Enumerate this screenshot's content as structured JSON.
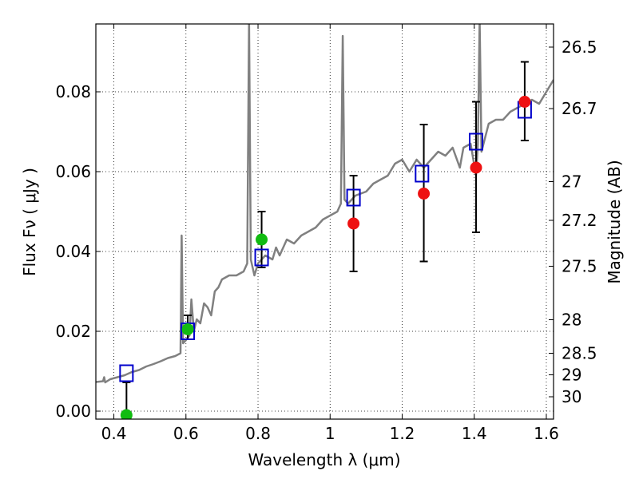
{
  "chart_data": {
    "type": "scatter",
    "xlabel": "Wavelength λ (μm)",
    "ylabel": "Flux  Fν  ( μJy )",
    "y2label": "Magnitude (AB)",
    "xlim": [
      0.35,
      1.62
    ],
    "ylim": [
      -0.002,
      0.097
    ],
    "grid": true,
    "x_ticks": [
      0.4,
      0.6,
      0.8,
      1.0,
      1.2,
      1.4,
      1.6
    ],
    "x_tick_labels": [
      "0.4",
      "0.6",
      "0.8",
      "1",
      "1.2",
      "1.4",
      "1.6"
    ],
    "y_ticks": [
      0.0,
      0.02,
      0.04,
      0.06,
      0.08
    ],
    "y_tick_labels": [
      "0.00",
      "0.02",
      "0.04",
      "0.06",
      "0.08"
    ],
    "y2_ticks": [
      {
        "label": "26.5",
        "flux": 0.0912
      },
      {
        "label": "26.7",
        "flux": 0.0758
      },
      {
        "label": "27",
        "flux": 0.0575
      },
      {
        "label": "27.2",
        "flux": 0.0478
      },
      {
        "label": "27.5",
        "flux": 0.0363
      },
      {
        "label": "28",
        "flux": 0.0229
      },
      {
        "label": "28.5",
        "flux": 0.0145
      },
      {
        "label": "29",
        "flux": 0.0091
      },
      {
        "label": "30",
        "flux": 0.0036
      }
    ],
    "spectrum": {
      "color": "#808080",
      "points": [
        [
          0.35,
          0.0073
        ],
        [
          0.37,
          0.0075
        ],
        [
          0.373,
          0.0085
        ],
        [
          0.376,
          0.0072
        ],
        [
          0.39,
          0.008
        ],
        [
          0.41,
          0.0085
        ],
        [
          0.43,
          0.009
        ],
        [
          0.45,
          0.0098
        ],
        [
          0.47,
          0.0103
        ],
        [
          0.49,
          0.0112
        ],
        [
          0.51,
          0.0118
        ],
        [
          0.53,
          0.0125
        ],
        [
          0.55,
          0.0133
        ],
        [
          0.57,
          0.0138
        ],
        [
          0.585,
          0.0145
        ],
        [
          0.588,
          0.044
        ],
        [
          0.592,
          0.017
        ],
        [
          0.6,
          0.0178
        ],
        [
          0.61,
          0.019
        ],
        [
          0.615,
          0.028
        ],
        [
          0.622,
          0.02
        ],
        [
          0.63,
          0.023
        ],
        [
          0.64,
          0.022
        ],
        [
          0.65,
          0.027
        ],
        [
          0.66,
          0.026
        ],
        [
          0.67,
          0.024
        ],
        [
          0.68,
          0.03
        ],
        [
          0.69,
          0.031
        ],
        [
          0.7,
          0.033
        ],
        [
          0.72,
          0.034
        ],
        [
          0.74,
          0.034
        ],
        [
          0.76,
          0.035
        ],
        [
          0.77,
          0.037
        ],
        [
          0.775,
          0.098
        ],
        [
          0.78,
          0.038
        ],
        [
          0.79,
          0.034
        ],
        [
          0.8,
          0.037
        ],
        [
          0.82,
          0.039
        ],
        [
          0.84,
          0.038
        ],
        [
          0.85,
          0.041
        ],
        [
          0.86,
          0.039
        ],
        [
          0.88,
          0.043
        ],
        [
          0.9,
          0.042
        ],
        [
          0.92,
          0.044
        ],
        [
          0.94,
          0.045
        ],
        [
          0.96,
          0.046
        ],
        [
          0.98,
          0.048
        ],
        [
          1.0,
          0.049
        ],
        [
          1.02,
          0.05
        ],
        [
          1.03,
          0.052
        ],
        [
          1.035,
          0.094
        ],
        [
          1.04,
          0.053
        ],
        [
          1.05,
          0.052
        ],
        [
          1.07,
          0.054
        ],
        [
          1.1,
          0.055
        ],
        [
          1.12,
          0.057
        ],
        [
          1.14,
          0.058
        ],
        [
          1.16,
          0.059
        ],
        [
          1.18,
          0.062
        ],
        [
          1.2,
          0.063
        ],
        [
          1.22,
          0.06
        ],
        [
          1.24,
          0.063
        ],
        [
          1.26,
          0.061
        ],
        [
          1.28,
          0.063
        ],
        [
          1.3,
          0.065
        ],
        [
          1.32,
          0.064
        ],
        [
          1.34,
          0.066
        ],
        [
          1.36,
          0.061
        ],
        [
          1.37,
          0.066
        ],
        [
          1.39,
          0.067
        ],
        [
          1.405,
          0.059
        ],
        [
          1.41,
          0.067
        ],
        [
          1.415,
          0.098
        ],
        [
          1.42,
          0.065
        ],
        [
          1.44,
          0.072
        ],
        [
          1.46,
          0.073
        ],
        [
          1.48,
          0.073
        ],
        [
          1.5,
          0.075
        ],
        [
          1.52,
          0.076
        ],
        [
          1.54,
          0.077
        ],
        [
          1.56,
          0.078
        ],
        [
          1.58,
          0.077
        ],
        [
          1.6,
          0.08
        ],
        [
          1.62,
          0.083
        ]
      ]
    },
    "series": [
      {
        "color": "#0000cc",
        "marker": "open-square",
        "points": [
          [
            0.435,
            0.0095
          ],
          [
            0.605,
            0.02
          ],
          [
            0.81,
            0.0385
          ],
          [
            1.065,
            0.0535
          ],
          [
            1.255,
            0.0595
          ],
          [
            1.405,
            0.0675
          ],
          [
            1.54,
            0.0755
          ]
        ]
      },
      {
        "color": "#11bb11",
        "marker": "circle",
        "points": [
          [
            0.435,
            -0.001
          ],
          [
            0.605,
            0.0205
          ],
          [
            0.81,
            0.043
          ]
        ]
      },
      {
        "color": "#ee1111",
        "marker": "circle",
        "points": [
          [
            1.065,
            0.047
          ],
          [
            1.26,
            0.0545
          ],
          [
            1.405,
            0.061
          ],
          [
            1.54,
            0.0775
          ]
        ]
      }
    ],
    "errorbars": [
      {
        "x": 0.435,
        "lo": -0.002,
        "hi": 0.0072
      },
      {
        "x": 0.605,
        "lo": 0.018,
        "hi": 0.024
      },
      {
        "x": 0.81,
        "lo": 0.036,
        "hi": 0.05
      },
      {
        "x": 1.065,
        "lo": 0.035,
        "hi": 0.059
      },
      {
        "x": 1.26,
        "lo": 0.0375,
        "hi": 0.0718
      },
      {
        "x": 1.405,
        "lo": 0.0448,
        "hi": 0.0775
      },
      {
        "x": 1.54,
        "lo": 0.0678,
        "hi": 0.0875
      }
    ]
  }
}
